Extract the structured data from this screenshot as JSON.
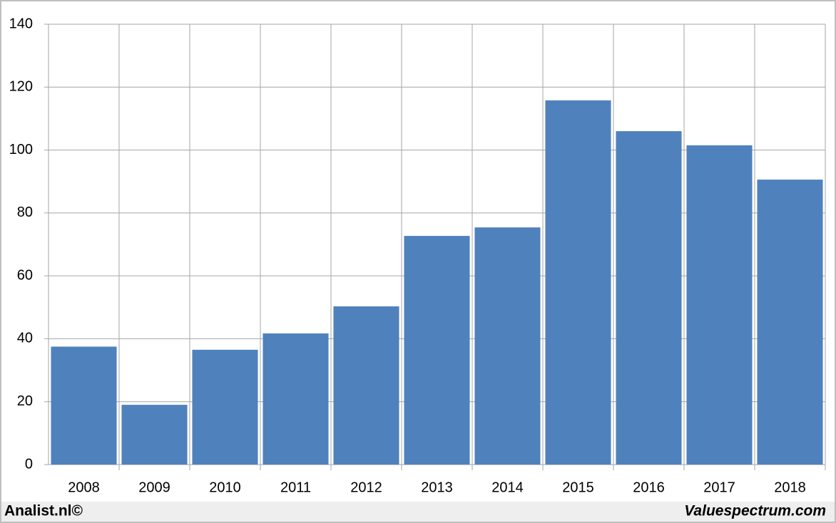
{
  "chart_data": {
    "type": "bar",
    "categories": [
      "2008",
      "2009",
      "2010",
      "2011",
      "2012",
      "2013",
      "2014",
      "2015",
      "2016",
      "2017",
      "2018"
    ],
    "values": [
      37.5,
      19,
      36.5,
      41.7,
      50.3,
      72.7,
      75.4,
      115.8,
      106,
      101.5,
      90.6
    ],
    "color": "#4f81bd",
    "ylim": [
      0,
      140
    ],
    "yticks": [
      0,
      20,
      40,
      60,
      80,
      100,
      120,
      140
    ],
    "grid": true,
    "footer_left": "Analist.nl©",
    "footer_right": "Valuespectrum.com"
  }
}
